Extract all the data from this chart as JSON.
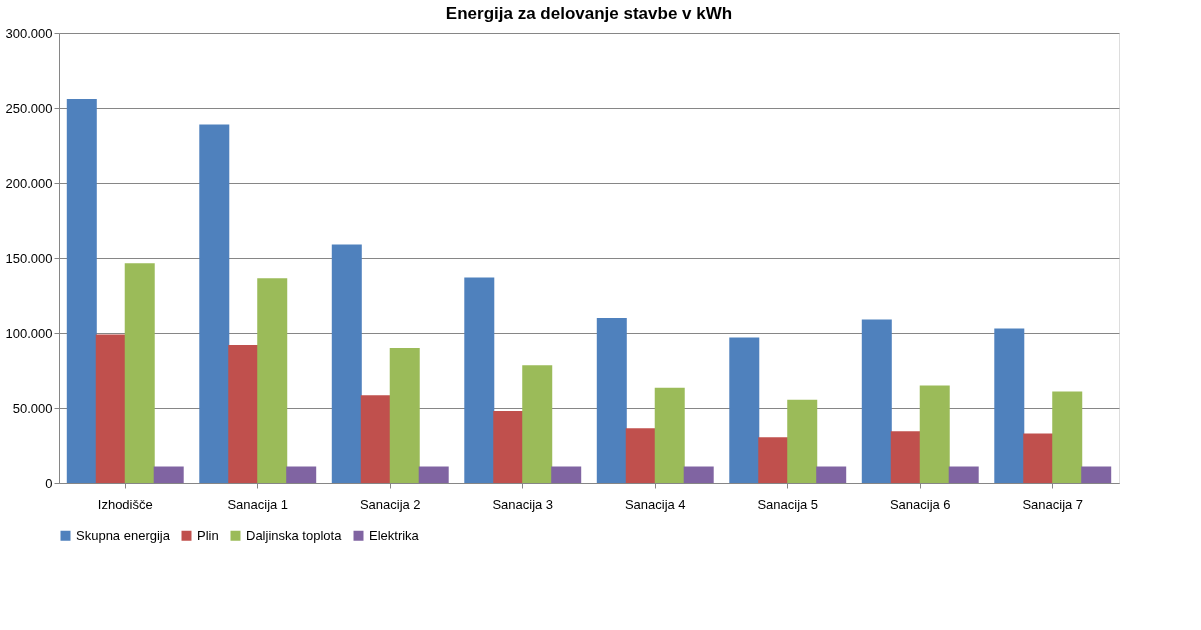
{
  "chart_data": {
    "type": "bar",
    "title": "Energija za delovanje stavbe v kWh",
    "categories": [
      "Izhodišče",
      "Sanacija 1",
      "Sanacija 2",
      "Sanacija 3",
      "Sanacija 4",
      "Sanacija 5",
      "Sanacija 6",
      "Sanacija 7"
    ],
    "series": [
      {
        "name": "Skupna energija",
        "color": "#4f81bd",
        "values": [
          256000,
          239000,
          159000,
          137000,
          110000,
          97000,
          109000,
          103000
        ]
      },
      {
        "name": "Plin",
        "color": "#c0504d",
        "values": [
          99000,
          92000,
          58500,
          48000,
          36500,
          30500,
          34500,
          33000
        ]
      },
      {
        "name": "Daljinska toplota",
        "color": "#9bbb59",
        "values": [
          146500,
          136500,
          90000,
          78500,
          63500,
          55500,
          65000,
          61000
        ]
      },
      {
        "name": "Elektrika",
        "color": "#8064a2",
        "values": [
          11000,
          11000,
          11000,
          11000,
          11000,
          11000,
          11000,
          11000
        ]
      }
    ],
    "ylim": [
      0,
      300000
    ],
    "yticks": [
      0,
      {
        "value": 50000,
        "label": "50.000"
      },
      {
        "value": 100000,
        "label": "100.000"
      },
      {
        "value": 150000,
        "label": "150.000"
      },
      {
        "value": 200000,
        "label": "200.000"
      },
      {
        "value": 250000,
        "label": "250.000"
      },
      {
        "value": 300000,
        "label": "300.000"
      }
    ],
    "grid": "y",
    "legend": "bottom"
  }
}
